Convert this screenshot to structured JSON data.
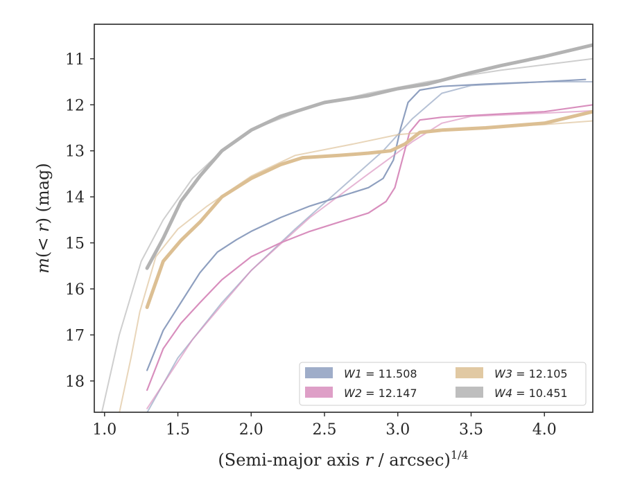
{
  "chart_data": {
    "type": "line",
    "xlabel": "(Semi-major axis r / arcsec)",
    "xlabel_prefix": "(Semi-major axis ",
    "xlabel_var": "r",
    "xlabel_suffix": " / arcsec)",
    "xlabel_superscript": "1/4",
    "ylabel": "m(< r) (mag)",
    "ylabel_pre": "m",
    "ylabel_mid": "(< ",
    "ylabel_var": "r",
    "ylabel_post": ") (mag)",
    "xlim": [
      0.93,
      4.33
    ],
    "ylim": [
      18.68,
      10.25
    ],
    "y_inverted": true,
    "grid": false,
    "legend_position": "lower-right",
    "legend_columns": 2,
    "xticks": [
      1.0,
      1.5,
      2.0,
      2.5,
      3.0,
      3.5,
      4.0
    ],
    "xtick_labels": [
      "1.0",
      "1.5",
      "2.0",
      "2.5",
      "3.0",
      "3.5",
      "4.0"
    ],
    "yticks": [
      11,
      12,
      13,
      14,
      15,
      16,
      17,
      18
    ],
    "ytick_labels": [
      "11",
      "12",
      "13",
      "14",
      "15",
      "16",
      "17",
      "18"
    ],
    "series": [
      {
        "name": "W1 = 11.508",
        "band": "W1",
        "value_text": " = 11.508",
        "color": "#8e9fbf",
        "profile": [
          [
            1.29,
            17.77
          ],
          [
            1.4,
            16.9
          ],
          [
            1.52,
            16.3
          ],
          [
            1.65,
            15.65
          ],
          [
            1.77,
            15.2
          ],
          [
            1.9,
            14.93
          ],
          [
            2.0,
            14.75
          ],
          [
            2.2,
            14.45
          ],
          [
            2.4,
            14.2
          ],
          [
            2.6,
            14.0
          ],
          [
            2.8,
            13.8
          ],
          [
            2.9,
            13.6
          ],
          [
            2.97,
            13.2
          ],
          [
            3.02,
            12.5
          ],
          [
            3.07,
            11.95
          ],
          [
            3.15,
            11.68
          ],
          [
            3.3,
            11.6
          ],
          [
            3.6,
            11.55
          ],
          [
            4.0,
            11.5
          ],
          [
            4.28,
            11.45
          ]
        ],
        "model": [
          [
            1.27,
            18.8
          ],
          [
            1.5,
            17.5
          ],
          [
            1.8,
            16.3
          ],
          [
            2.0,
            15.6
          ],
          [
            2.3,
            14.7
          ],
          [
            2.6,
            13.85
          ],
          [
            2.9,
            13.0
          ],
          [
            3.1,
            12.3
          ],
          [
            3.3,
            11.75
          ],
          [
            3.5,
            11.58
          ],
          [
            4.0,
            11.5
          ],
          [
            4.33,
            11.5
          ]
        ]
      },
      {
        "name": "W2 = 12.147",
        "band": "W2",
        "value_text": " = 12.147",
        "color": "#d88ebd",
        "profile": [
          [
            1.29,
            18.2
          ],
          [
            1.4,
            17.3
          ],
          [
            1.52,
            16.75
          ],
          [
            1.65,
            16.3
          ],
          [
            1.8,
            15.8
          ],
          [
            2.0,
            15.3
          ],
          [
            2.2,
            15.0
          ],
          [
            2.4,
            14.75
          ],
          [
            2.6,
            14.55
          ],
          [
            2.8,
            14.35
          ],
          [
            2.92,
            14.1
          ],
          [
            2.98,
            13.8
          ],
          [
            3.03,
            13.2
          ],
          [
            3.08,
            12.6
          ],
          [
            3.15,
            12.33
          ],
          [
            3.3,
            12.27
          ],
          [
            3.7,
            12.2
          ],
          [
            4.0,
            12.15
          ],
          [
            4.33,
            12.0
          ]
        ],
        "model": [
          [
            1.29,
            18.6
          ],
          [
            1.6,
            17.1
          ],
          [
            2.0,
            15.6
          ],
          [
            2.4,
            14.45
          ],
          [
            2.8,
            13.5
          ],
          [
            3.1,
            12.8
          ],
          [
            3.3,
            12.4
          ],
          [
            3.5,
            12.25
          ],
          [
            4.0,
            12.18
          ],
          [
            4.33,
            12.13
          ]
        ]
      },
      {
        "name": "W3 = 12.105",
        "band": "W3",
        "value_text": " = 12.105",
        "color": "#dcbf93",
        "profile": [
          [
            1.29,
            16.4
          ],
          [
            1.4,
            15.4
          ],
          [
            1.52,
            14.95
          ],
          [
            1.65,
            14.55
          ],
          [
            1.8,
            14.0
          ],
          [
            2.0,
            13.6
          ],
          [
            2.2,
            13.3
          ],
          [
            2.35,
            13.15
          ],
          [
            2.6,
            13.1
          ],
          [
            2.8,
            13.05
          ],
          [
            2.95,
            13.0
          ],
          [
            3.05,
            12.85
          ],
          [
            3.15,
            12.6
          ],
          [
            3.3,
            12.55
          ],
          [
            3.6,
            12.5
          ],
          [
            4.0,
            12.4
          ],
          [
            4.33,
            12.15
          ]
        ],
        "model": [
          [
            1.1,
            18.7
          ],
          [
            1.18,
            17.5
          ],
          [
            1.24,
            16.5
          ],
          [
            1.35,
            15.3
          ],
          [
            1.5,
            14.7
          ],
          [
            1.7,
            14.2
          ],
          [
            2.0,
            13.55
          ],
          [
            2.3,
            13.1
          ],
          [
            2.7,
            12.85
          ],
          [
            3.0,
            12.65
          ],
          [
            3.5,
            12.5
          ],
          [
            4.0,
            12.43
          ],
          [
            4.33,
            12.35
          ]
        ]
      },
      {
        "name": "W4 = 10.451",
        "band": "W4",
        "value_text": " = 10.451",
        "color": "#b3b3b3",
        "profile": [
          [
            1.29,
            15.55
          ],
          [
            1.4,
            14.9
          ],
          [
            1.52,
            14.1
          ],
          [
            1.65,
            13.55
          ],
          [
            1.8,
            13.0
          ],
          [
            2.0,
            12.55
          ],
          [
            2.2,
            12.25
          ],
          [
            2.5,
            11.95
          ],
          [
            2.8,
            11.8
          ],
          [
            3.0,
            11.65
          ],
          [
            3.2,
            11.55
          ],
          [
            3.5,
            11.3
          ],
          [
            3.7,
            11.15
          ],
          [
            4.0,
            10.95
          ],
          [
            4.33,
            10.7
          ]
        ],
        "model": [
          [
            0.98,
            18.7
          ],
          [
            1.1,
            17.0
          ],
          [
            1.25,
            15.4
          ],
          [
            1.4,
            14.5
          ],
          [
            1.6,
            13.6
          ],
          [
            1.8,
            13.0
          ],
          [
            2.0,
            12.55
          ],
          [
            2.4,
            12.05
          ],
          [
            2.8,
            11.75
          ],
          [
            3.2,
            11.5
          ],
          [
            3.7,
            11.25
          ],
          [
            4.33,
            11.0
          ]
        ]
      }
    ]
  }
}
